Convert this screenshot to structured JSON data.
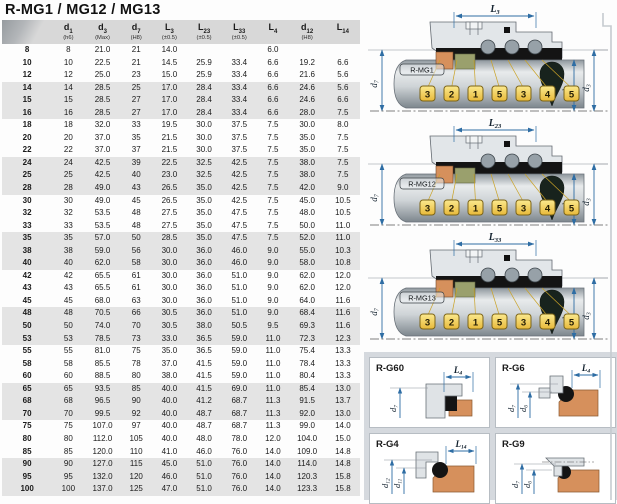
{
  "title": "R-MG1 / MG12 / MG13",
  "colors": {
    "dimension_blue": "#2e6da4",
    "tag_gold": "#e8b93a",
    "seat_orange": "#d6905c",
    "ring_olive": "#9aa06d",
    "band_gray": "#e4e4e4",
    "header_gray": "#d8d8d8",
    "rubber_black": "#141414"
  },
  "table": {
    "columns": [
      {
        "sym": "d",
        "idx": "1",
        "note": "(h6)"
      },
      {
        "sym": "d",
        "idx": "3",
        "note": "(Max)"
      },
      {
        "sym": "d",
        "idx": "7",
        "note": "(H8)"
      },
      {
        "sym": "L",
        "idx": "3",
        "note": "(±0.5)"
      },
      {
        "sym": "L",
        "idx": "23",
        "note": "(±0.5)"
      },
      {
        "sym": "L",
        "idx": "33",
        "note": "(±0.5)"
      },
      {
        "sym": "L",
        "idx": "4",
        "note": ""
      },
      {
        "sym": "d",
        "idx": "12",
        "note": "(H8)"
      },
      {
        "sym": "L",
        "idx": "14",
        "note": ""
      }
    ],
    "rows": [
      [
        "8",
        "8",
        "21.0",
        "21",
        "14.0",
        "",
        "",
        "6.0",
        "",
        ""
      ],
      [
        "10",
        "10",
        "22.5",
        "21",
        "14.5",
        "25.9",
        "33.4",
        "6.6",
        "19.2",
        "6.6"
      ],
      [
        "12",
        "12",
        "25.0",
        "23",
        "15.0",
        "25.9",
        "33.4",
        "6.6",
        "21.6",
        "5.6"
      ],
      [
        "14",
        "14",
        "28.5",
        "25",
        "17.0",
        "28.4",
        "33.4",
        "6.6",
        "24.6",
        "5.6"
      ],
      [
        "15",
        "15",
        "28.5",
        "27",
        "17.0",
        "28.4",
        "33.4",
        "6.6",
        "24.6",
        "6.6"
      ],
      [
        "16",
        "16",
        "28.5",
        "27",
        "17.0",
        "28.4",
        "33.4",
        "6.6",
        "28.0",
        "7.5"
      ],
      [
        "18",
        "18",
        "32.0",
        "33",
        "19.5",
        "30.0",
        "37.5",
        "7.5",
        "30.0",
        "8.0"
      ],
      [
        "20",
        "20",
        "37.0",
        "35",
        "21.5",
        "30.0",
        "37.5",
        "7.5",
        "35.0",
        "7.5"
      ],
      [
        "22",
        "22",
        "37.0",
        "37",
        "21.5",
        "30.0",
        "37.5",
        "7.5",
        "35.0",
        "7.5"
      ],
      [
        "24",
        "24",
        "42.5",
        "39",
        "22.5",
        "32.5",
        "42.5",
        "7.5",
        "38.0",
        "7.5"
      ],
      [
        "25",
        "25",
        "42.5",
        "40",
        "23.0",
        "32.5",
        "42.5",
        "7.5",
        "38.0",
        "7.5"
      ],
      [
        "28",
        "28",
        "49.0",
        "43",
        "26.5",
        "35.0",
        "42.5",
        "7.5",
        "42.0",
        "9.0"
      ],
      [
        "30",
        "30",
        "49.0",
        "45",
        "26.5",
        "35.0",
        "42.5",
        "7.5",
        "45.0",
        "10.5"
      ],
      [
        "32",
        "32",
        "53.5",
        "48",
        "27.5",
        "35.0",
        "47.5",
        "7.5",
        "48.0",
        "10.5"
      ],
      [
        "33",
        "33",
        "53.5",
        "48",
        "27.5",
        "35.0",
        "47.5",
        "7.5",
        "50.0",
        "11.0"
      ],
      [
        "35",
        "35",
        "57.0",
        "50",
        "28.5",
        "35.0",
        "47.5",
        "7.5",
        "52.0",
        "11.0"
      ],
      [
        "38",
        "38",
        "59.0",
        "56",
        "30.0",
        "36.0",
        "46.0",
        "9.0",
        "55.0",
        "10.3"
      ],
      [
        "40",
        "40",
        "62.0",
        "58",
        "30.0",
        "36.0",
        "46.0",
        "9.0",
        "58.0",
        "10.8"
      ],
      [
        "42",
        "42",
        "65.5",
        "61",
        "30.0",
        "36.0",
        "51.0",
        "9.0",
        "62.0",
        "12.0"
      ],
      [
        "43",
        "43",
        "65.5",
        "61",
        "30.0",
        "36.0",
        "51.0",
        "9.0",
        "62.0",
        "12.0"
      ],
      [
        "45",
        "45",
        "68.0",
        "63",
        "30.0",
        "36.0",
        "51.0",
        "9.0",
        "64.0",
        "11.6"
      ],
      [
        "48",
        "48",
        "70.5",
        "66",
        "30.5",
        "36.0",
        "51.0",
        "9.0",
        "68.4",
        "11.6"
      ],
      [
        "50",
        "50",
        "74.0",
        "70",
        "30.5",
        "38.0",
        "50.5",
        "9.5",
        "69.3",
        "11.6"
      ],
      [
        "53",
        "53",
        "78.5",
        "73",
        "33.0",
        "36.5",
        "59.0",
        "11.0",
        "72.3",
        "12.3"
      ],
      [
        "55",
        "55",
        "81.0",
        "75",
        "35.0",
        "36.5",
        "59.0",
        "11.0",
        "75.4",
        "13.3"
      ],
      [
        "58",
        "58",
        "85.5",
        "78",
        "37.0",
        "41.5",
        "59.0",
        "11.0",
        "78.4",
        "13.3"
      ],
      [
        "60",
        "60",
        "88.5",
        "80",
        "38.0",
        "41.5",
        "59.0",
        "11.0",
        "80.4",
        "13.3"
      ],
      [
        "65",
        "65",
        "93.5",
        "85",
        "40.0",
        "41.5",
        "69.0",
        "11.0",
        "85.4",
        "13.0"
      ],
      [
        "68",
        "68",
        "96.5",
        "90",
        "40.0",
        "41.2",
        "68.7",
        "11.3",
        "91.5",
        "13.7"
      ],
      [
        "70",
        "70",
        "99.5",
        "92",
        "40.0",
        "48.7",
        "68.7",
        "11.3",
        "92.0",
        "13.0"
      ],
      [
        "75",
        "75",
        "107.0",
        "97",
        "40.0",
        "48.7",
        "68.7",
        "11.3",
        "99.0",
        "14.0"
      ],
      [
        "80",
        "80",
        "112.0",
        "105",
        "40.0",
        "48.0",
        "78.0",
        "12.0",
        "104.0",
        "15.0"
      ],
      [
        "85",
        "85",
        "120.0",
        "110",
        "41.0",
        "46.0",
        "76.0",
        "14.0",
        "109.0",
        "14.8"
      ],
      [
        "90",
        "90",
        "127.0",
        "115",
        "45.0",
        "51.0",
        "76.0",
        "14.0",
        "114.0",
        "14.8"
      ],
      [
        "95",
        "95",
        "132.0",
        "120",
        "46.0",
        "51.0",
        "76.0",
        "14.0",
        "120.3",
        "15.8"
      ],
      [
        "100",
        "100",
        "137.0",
        "125",
        "47.0",
        "51.0",
        "76.0",
        "14.0",
        "123.3",
        "15.8"
      ]
    ]
  },
  "diagrams": [
    {
      "name": "R-MG1",
      "dim": {
        "sym": "L",
        "idx": "3"
      },
      "left_dim": {
        "sym": "d",
        "idx": "7"
      },
      "right_dims": [
        {
          "sym": "d",
          "idx": "1"
        },
        {
          "sym": "d",
          "idx": "3"
        }
      ],
      "tags": [
        "3",
        "2",
        "1",
        "5",
        "3",
        "4",
        "5"
      ]
    },
    {
      "name": "R-MG12",
      "dim": {
        "sym": "L",
        "idx": "23"
      },
      "left_dim": {
        "sym": "d",
        "idx": "7"
      },
      "right_dims": [
        {
          "sym": "d",
          "idx": "1"
        },
        {
          "sym": "d",
          "idx": "3"
        }
      ],
      "tags": [
        "3",
        "2",
        "1",
        "5",
        "3",
        "4",
        "5"
      ]
    },
    {
      "name": "R-MG13",
      "dim": {
        "sym": "L",
        "idx": "33"
      },
      "left_dim": {
        "sym": "d",
        "idx": "7"
      },
      "right_dims": [
        {
          "sym": "d",
          "idx": "1"
        },
        {
          "sym": "d",
          "idx": "3"
        }
      ],
      "tags": [
        "3",
        "2",
        "1",
        "5",
        "3",
        "4",
        "5"
      ]
    }
  ],
  "cards": [
    {
      "name": "R-G60",
      "variant": "g60",
      "hdim": {
        "sym": "L",
        "idx": "4"
      },
      "vdims": [
        {
          "sym": "d",
          "idx": "7"
        }
      ]
    },
    {
      "name": "R-G6",
      "variant": "g6",
      "hdim": {
        "sym": "L",
        "idx": "4"
      },
      "vdims": [
        {
          "sym": "d",
          "idx": "7"
        },
        {
          "sym": "d",
          "idx": "6"
        }
      ]
    },
    {
      "name": "R-G4",
      "variant": "g4",
      "hdim": {
        "sym": "L",
        "idx": "14"
      },
      "vdims": [
        {
          "sym": "d",
          "idx": "12"
        },
        {
          "sym": "d",
          "idx": "11"
        }
      ]
    },
    {
      "name": "R-G9",
      "variant": "g9",
      "hdim": null,
      "vdims": [
        {
          "sym": "d",
          "idx": "7"
        },
        {
          "sym": "d",
          "idx": "6"
        }
      ]
    }
  ]
}
